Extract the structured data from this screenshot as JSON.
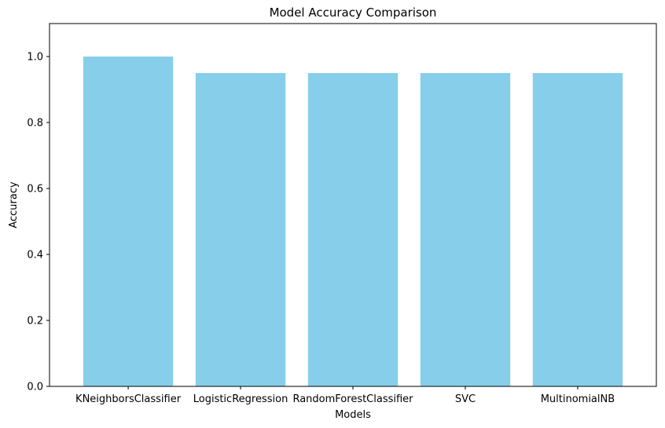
{
  "chart_data": {
    "type": "bar",
    "title": "Model Accuracy Comparison",
    "xlabel": "Models",
    "ylabel": "Accuracy",
    "categories": [
      "KNeighborsClassifier",
      "LogisticRegression",
      "RandomForestClassifier",
      "SVC",
      "MultinomialNB"
    ],
    "values": [
      1.0,
      0.95,
      0.95,
      0.95,
      0.95
    ],
    "ylim": [
      0,
      1.1
    ],
    "yticks": [
      "0.0",
      "0.2",
      "0.4",
      "0.6",
      "0.8",
      "1.0"
    ],
    "bar_color": "#87CEEB",
    "grid": false,
    "legend": "none"
  }
}
